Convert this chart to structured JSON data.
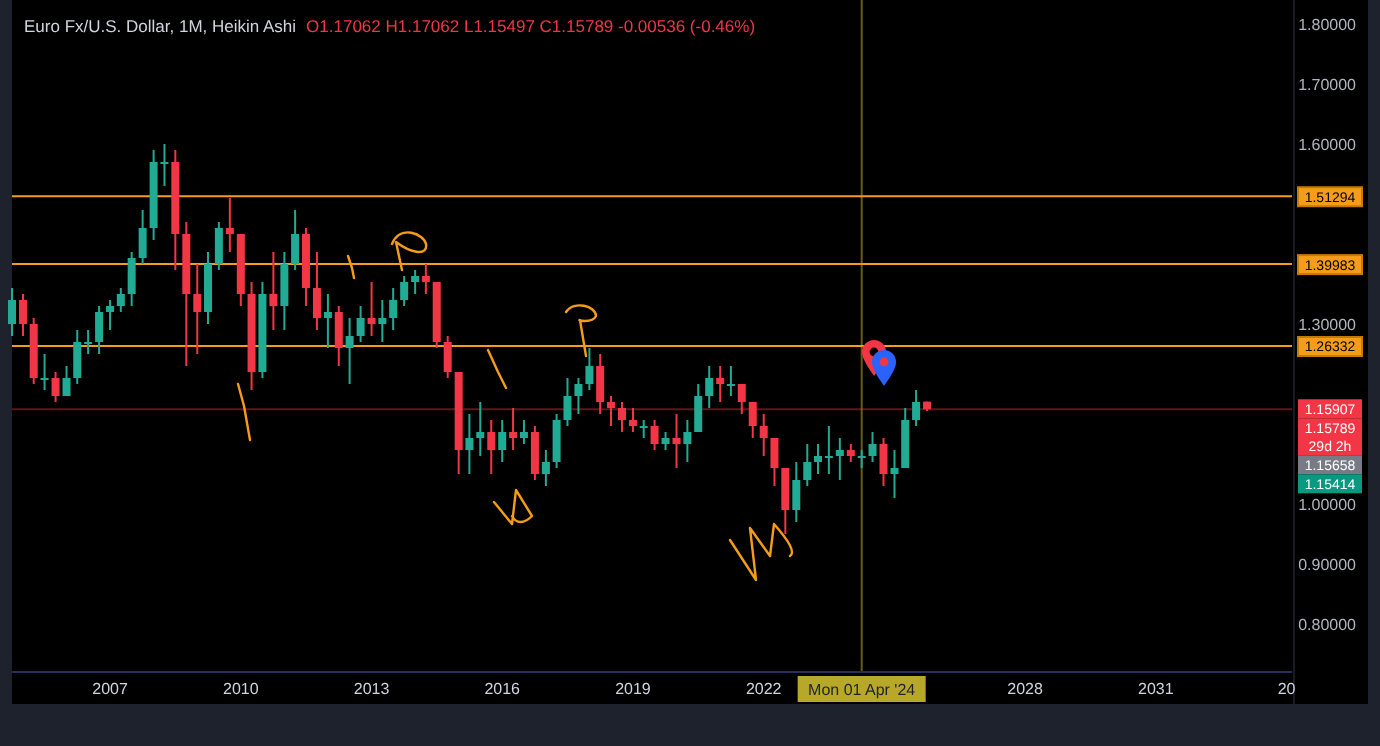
{
  "chart_data": {
    "type": "candlestick",
    "title": "Euro Fx/U.S. Dollar, 1M, Heikin Ashi",
    "subtitle": "O1.17062 H1.17062 L1.15497 C1.15789 -0.00536 (-0.46%)",
    "colors": [
      "#22ab94",
      "#f23645",
      "#f23645",
      "#22ab94",
      "#f23645",
      "#22ab94",
      "#22ab94",
      "#22ab94",
      "#22ab94",
      "#22ab94",
      "#22ab94",
      "#22ab94",
      "#22ab94",
      "#22ab94",
      "#22ab94",
      "#f23645",
      "#f23645",
      "#f23645",
      "#22ab94",
      "#22ab94",
      "#f23645",
      "#f23645",
      "#f23645",
      "#22ab94",
      "#f23645",
      "#22ab94",
      "#22ab94",
      "#f23645",
      "#f23645",
      "#22ab94",
      "#f23645",
      "#22ab94",
      "#22ab94",
      "#f23645",
      "#22ab94",
      "#22ab94",
      "#22ab94",
      "#22ab94",
      "#f23645",
      "#f23645",
      "#f23645",
      "#f23645",
      "#22ab94",
      "#22ab94",
      "#f23645",
      "#22ab94",
      "#f23645",
      "#22ab94",
      "#f23645",
      "#22ab94",
      "#22ab94",
      "#22ab94",
      "#22ab94",
      "#22ab94",
      "#f23645",
      "#f23645",
      "#f23645",
      "#f23645",
      "#22ab94",
      "#f23645",
      "#22ab94",
      "#f23645",
      "#22ab94",
      "#22ab94",
      "#22ab94",
      "#f23645",
      "#22ab94",
      "#f23645",
      "#f23645",
      "#f23645",
      "#f23645",
      "#f23645",
      "#22ab94",
      "#22ab94",
      "#22ab94",
      "#22ab94",
      "#22ab94",
      "#f23645",
      "#22ab94",
      "#22ab94",
      "#f23645",
      "#22ab94",
      "#22ab94",
      "#22ab94",
      "#f23645"
    ],
    "x": [
      "2004-10",
      "2005-01",
      "2005-04",
      "2005-07",
      "2005-10",
      "2006-01",
      "2006-04",
      "2006-07",
      "2006-10",
      "2007-01",
      "2007-04",
      "2007-07",
      "2007-10",
      "2008-01",
      "2008-04",
      "2008-07",
      "2008-10",
      "2009-01",
      "2009-04",
      "2009-07",
      "2009-10",
      "2010-01",
      "2010-04",
      "2010-07",
      "2010-10",
      "2011-01",
      "2011-04",
      "2011-07",
      "2011-10",
      "2012-01",
      "2012-04",
      "2012-07",
      "2012-10",
      "2013-01",
      "2013-04",
      "2013-07",
      "2013-10",
      "2014-01",
      "2014-04",
      "2014-07",
      "2014-10",
      "2015-01",
      "2015-04",
      "2015-07",
      "2015-10",
      "2016-01",
      "2016-04",
      "2016-07",
      "2016-10",
      "2017-01",
      "2017-04",
      "2017-07",
      "2017-10",
      "2018-01",
      "2018-04",
      "2018-07",
      "2018-10",
      "2019-01",
      "2019-04",
      "2019-07",
      "2019-10",
      "2020-01",
      "2020-04",
      "2020-07",
      "2020-10",
      "2021-01",
      "2021-04",
      "2021-07",
      "2021-10",
      "2022-01",
      "2022-04",
      "2022-07",
      "2022-10",
      "2023-01",
      "2023-04",
      "2023-07",
      "2023-10",
      "2024-01",
      "2024-04",
      "2024-07",
      "2024-10",
      "2025-01",
      "2025-04",
      "2025-07",
      "2025-10"
    ],
    "ohlc": [
      [
        1.3,
        1.36,
        1.28,
        1.34
      ],
      [
        1.34,
        1.35,
        1.28,
        1.3
      ],
      [
        1.3,
        1.31,
        1.2,
        1.21
      ],
      [
        1.21,
        1.25,
        1.19,
        1.21
      ],
      [
        1.21,
        1.22,
        1.17,
        1.18
      ],
      [
        1.18,
        1.23,
        1.18,
        1.21
      ],
      [
        1.21,
        1.29,
        1.2,
        1.27
      ],
      [
        1.27,
        1.29,
        1.25,
        1.27
      ],
      [
        1.27,
        1.33,
        1.25,
        1.32
      ],
      [
        1.32,
        1.34,
        1.29,
        1.33
      ],
      [
        1.33,
        1.36,
        1.32,
        1.35
      ],
      [
        1.35,
        1.42,
        1.33,
        1.41
      ],
      [
        1.41,
        1.49,
        1.4,
        1.46
      ],
      [
        1.46,
        1.59,
        1.44,
        1.57
      ],
      [
        1.57,
        1.6,
        1.53,
        1.57
      ],
      [
        1.57,
        1.59,
        1.39,
        1.45
      ],
      [
        1.45,
        1.47,
        1.23,
        1.35
      ],
      [
        1.35,
        1.4,
        1.25,
        1.32
      ],
      [
        1.32,
        1.42,
        1.3,
        1.4
      ],
      [
        1.4,
        1.47,
        1.39,
        1.46
      ],
      [
        1.46,
        1.51,
        1.42,
        1.45
      ],
      [
        1.45,
        1.45,
        1.33,
        1.35
      ],
      [
        1.35,
        1.37,
        1.19,
        1.22
      ],
      [
        1.22,
        1.37,
        1.21,
        1.35
      ],
      [
        1.35,
        1.42,
        1.29,
        1.33
      ],
      [
        1.33,
        1.42,
        1.29,
        1.4
      ],
      [
        1.4,
        1.49,
        1.39,
        1.45
      ],
      [
        1.45,
        1.46,
        1.33,
        1.36
      ],
      [
        1.36,
        1.42,
        1.29,
        1.31
      ],
      [
        1.31,
        1.35,
        1.26,
        1.32
      ],
      [
        1.32,
        1.33,
        1.23,
        1.26
      ],
      [
        1.26,
        1.31,
        1.2,
        1.28
      ],
      [
        1.28,
        1.33,
        1.27,
        1.31
      ],
      [
        1.31,
        1.37,
        1.28,
        1.3
      ],
      [
        1.3,
        1.34,
        1.27,
        1.31
      ],
      [
        1.31,
        1.36,
        1.29,
        1.34
      ],
      [
        1.34,
        1.38,
        1.33,
        1.37
      ],
      [
        1.37,
        1.39,
        1.35,
        1.38
      ],
      [
        1.38,
        1.4,
        1.35,
        1.37
      ],
      [
        1.37,
        1.37,
        1.26,
        1.27
      ],
      [
        1.27,
        1.28,
        1.21,
        1.22
      ],
      [
        1.22,
        1.22,
        1.05,
        1.09
      ],
      [
        1.09,
        1.15,
        1.05,
        1.11
      ],
      [
        1.11,
        1.17,
        1.08,
        1.12
      ],
      [
        1.12,
        1.14,
        1.05,
        1.09
      ],
      [
        1.09,
        1.14,
        1.07,
        1.12
      ],
      [
        1.12,
        1.16,
        1.09,
        1.11
      ],
      [
        1.11,
        1.14,
        1.1,
        1.12
      ],
      [
        1.12,
        1.13,
        1.04,
        1.05
      ],
      [
        1.05,
        1.09,
        1.03,
        1.07
      ],
      [
        1.07,
        1.15,
        1.06,
        1.14
      ],
      [
        1.14,
        1.21,
        1.13,
        1.18
      ],
      [
        1.18,
        1.21,
        1.15,
        1.2
      ],
      [
        1.2,
        1.26,
        1.19,
        1.23
      ],
      [
        1.23,
        1.25,
        1.15,
        1.17
      ],
      [
        1.17,
        1.18,
        1.13,
        1.16
      ],
      [
        1.16,
        1.17,
        1.12,
        1.14
      ],
      [
        1.14,
        1.16,
        1.12,
        1.13
      ],
      [
        1.13,
        1.14,
        1.11,
        1.13
      ],
      [
        1.13,
        1.14,
        1.09,
        1.1
      ],
      [
        1.1,
        1.12,
        1.09,
        1.11
      ],
      [
        1.11,
        1.15,
        1.06,
        1.1
      ],
      [
        1.1,
        1.14,
        1.07,
        1.12
      ],
      [
        1.12,
        1.2,
        1.12,
        1.18
      ],
      [
        1.18,
        1.23,
        1.16,
        1.21
      ],
      [
        1.21,
        1.23,
        1.17,
        1.2
      ],
      [
        1.2,
        1.23,
        1.18,
        1.2
      ],
      [
        1.2,
        1.2,
        1.15,
        1.17
      ],
      [
        1.17,
        1.17,
        1.11,
        1.13
      ],
      [
        1.13,
        1.15,
        1.08,
        1.11
      ],
      [
        1.11,
        1.11,
        1.03,
        1.06
      ],
      [
        1.06,
        1.06,
        0.95,
        0.99
      ],
      [
        0.99,
        1.07,
        0.97,
        1.04
      ],
      [
        1.04,
        1.1,
        1.03,
        1.07
      ],
      [
        1.07,
        1.1,
        1.05,
        1.08
      ],
      [
        1.08,
        1.13,
        1.05,
        1.08
      ],
      [
        1.08,
        1.11,
        1.04,
        1.09
      ],
      [
        1.09,
        1.1,
        1.07,
        1.08
      ],
      [
        1.08,
        1.09,
        1.06,
        1.08
      ],
      [
        1.08,
        1.12,
        1.07,
        1.1
      ],
      [
        1.1,
        1.11,
        1.03,
        1.05
      ],
      [
        1.05,
        1.09,
        1.01,
        1.06
      ],
      [
        1.06,
        1.16,
        1.06,
        1.14
      ],
      [
        1.14,
        1.19,
        1.13,
        1.17
      ],
      [
        1.17062,
        1.17062,
        1.15497,
        1.15789
      ]
    ],
    "xlim": [
      "2004-10-01",
      "2034-02-15"
    ],
    "xticks": [
      {
        "value": "2007-01-01",
        "label": "2007"
      },
      {
        "value": "2010-01-01",
        "label": "2010"
      },
      {
        "value": "2013-01-01",
        "label": "2013"
      },
      {
        "value": "2016-01-01",
        "label": "2016"
      },
      {
        "value": "2019-01-01",
        "label": "2019"
      },
      {
        "value": "2022-01-01",
        "label": "2022"
      },
      {
        "value": "2028-01-01",
        "label": "2028"
      },
      {
        "value": "2031-01-01",
        "label": "2031"
      },
      {
        "value": "2034-01-01",
        "label": "20"
      }
    ],
    "ylim": [
      0.72,
      1.84
    ],
    "yticks": [
      {
        "value": 1.8,
        "label": "1.80000"
      },
      {
        "value": 1.7,
        "label": "1.70000"
      },
      {
        "value": 1.6,
        "label": "1.60000"
      },
      {
        "value": 1.3,
        "label": "1.30000"
      },
      {
        "value": 1.0,
        "label": "1.00000"
      },
      {
        "value": 0.9,
        "label": "0.90000"
      },
      {
        "value": 0.8,
        "label": "0.80000"
      }
    ],
    "grid": false,
    "ref_lines": [
      {
        "axis": "y",
        "value": 1.51294,
        "label": "1.51294",
        "color": "#f59d1b",
        "line_style": "solid"
      },
      {
        "axis": "y",
        "value": 1.39983,
        "label": "1.39983",
        "color": "#f59d1b",
        "line_style": "solid"
      },
      {
        "axis": "y",
        "value": 1.26332,
        "label": "1.26332",
        "color": "#f59d1b",
        "line_style": "solid"
      },
      {
        "axis": "y",
        "value": 1.15789,
        "label": "1.15789\n29d 2h",
        "color": "#f23645",
        "line_style": "solid"
      },
      {
        "axis": "x",
        "value": "2024-04-01",
        "label": "Mon 01 Apr '24",
        "color": "#b8a82a",
        "line_style": "solid"
      }
    ],
    "annotations": [
      "1.15907",
      "1.15658",
      "1.15414"
    ]
  }
}
